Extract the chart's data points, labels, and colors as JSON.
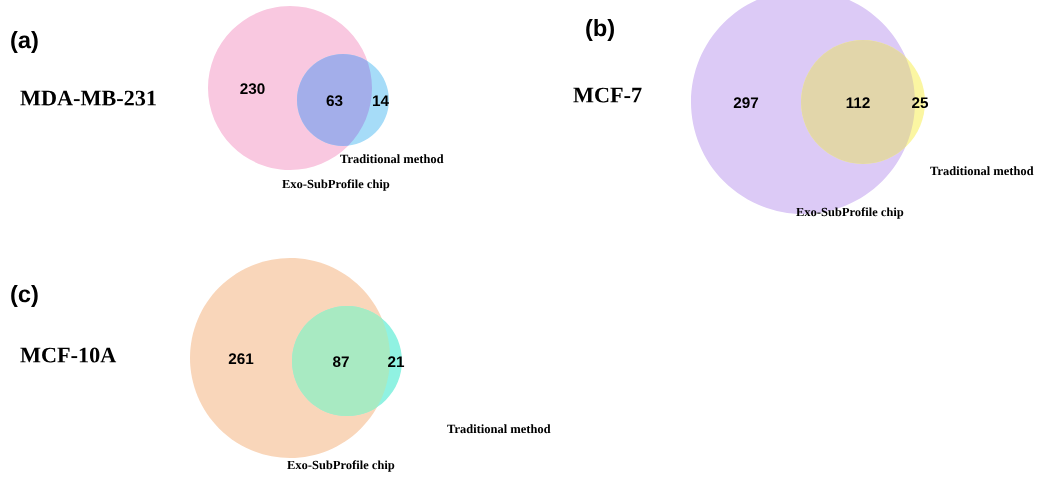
{
  "chart_data": [
    {
      "type": "other",
      "title": "(a)",
      "subtitle": "MDA-MB-231",
      "categories": [
        "Exo-SubProfile chip",
        null,
        "Traditional method"
      ],
      "values": [
        230,
        63,
        14
      ],
      "data_labels": true,
      "colors": [
        "#f9c8e0",
        "#a3aeea",
        "#a6dcf8"
      ]
    },
    {
      "type": "other",
      "title": "(b)",
      "subtitle": "MCF-7",
      "categories": [
        "Exo-SubProfile chip",
        null,
        "Traditional method"
      ],
      "values": [
        297,
        112,
        25
      ],
      "data_labels": true,
      "colors": [
        "#dccaf6",
        "#e2d6aa",
        "#fbf6a2"
      ]
    },
    {
      "type": "other",
      "title": "(c)",
      "subtitle": "MCF-10A",
      "categories": [
        "Exo-SubProfile chip",
        null,
        "Traditional method"
      ],
      "values": [
        261,
        87,
        21
      ],
      "data_labels": true,
      "colors": [
        "#f9d6ba",
        "#a8eac2",
        "#90f2e2"
      ]
    }
  ]
}
